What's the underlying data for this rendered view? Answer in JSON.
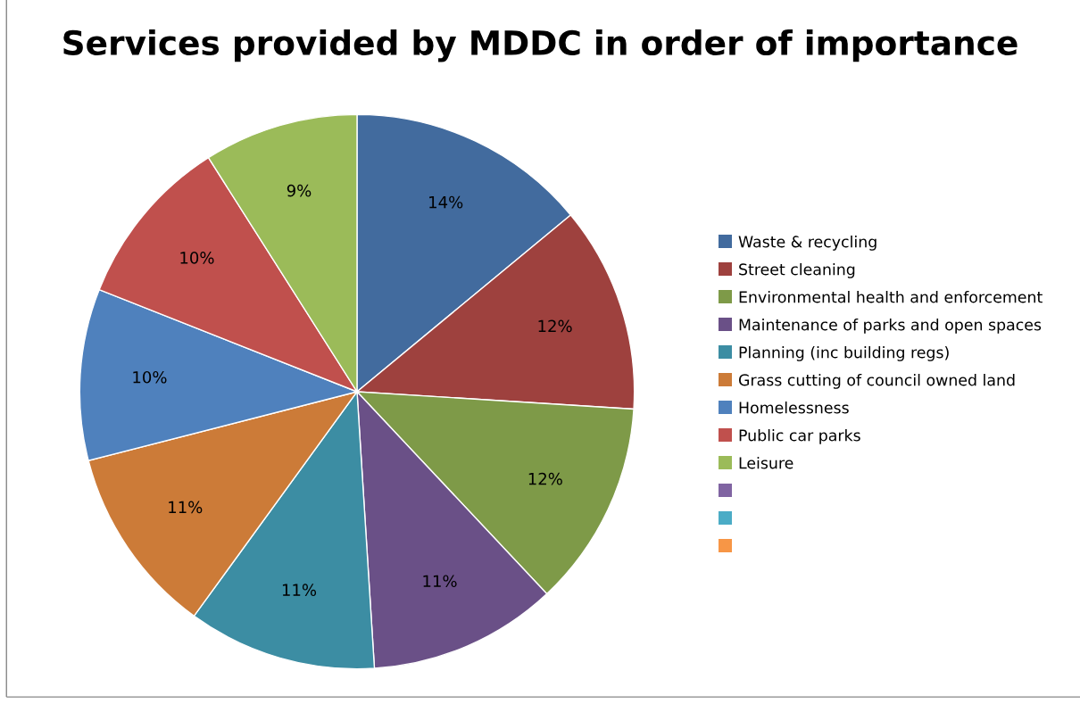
{
  "chart_data": {
    "type": "pie",
    "title": "Services provided by MDDC in order of importance",
    "categories": [
      "Waste & recycling",
      "Street cleaning",
      "Environmental health and enforcement",
      "Maintenance of parks and open spaces",
      "Planning (inc building regs)",
      "Grass cutting of council owned land",
      "Homelessness",
      "Public car parks",
      "Leisure",
      null,
      null,
      null
    ],
    "values": [
      14,
      12,
      12,
      11,
      11,
      11,
      10,
      10,
      9,
      0,
      0,
      0
    ],
    "value_labels": [
      "14%",
      "12%",
      "12%",
      "11%",
      "11%",
      "11%",
      "10%",
      "10%",
      "9%",
      null,
      null,
      null
    ],
    "colors": [
      "#426b9e",
      "#9e413e",
      "#7e9a48",
      "#6a5087",
      "#3c8da3",
      "#cc7b38",
      "#4f81bd",
      "#c0504d",
      "#9bbb59",
      "#8064a2",
      "#4bacc6",
      "#f79646"
    ],
    "legend": "right"
  }
}
